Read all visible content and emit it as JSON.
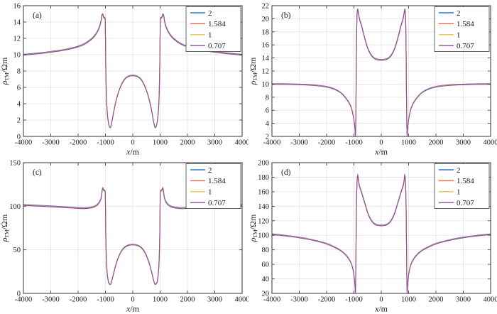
{
  "figure": {
    "background": "#ffffff"
  },
  "style": {
    "axis_color": "#333333",
    "grid_color": "#e3e3e3",
    "text_color": "#1a1a1a",
    "legend_border_color": "#555555",
    "legend_fill": "#ffffff"
  },
  "series": [
    {
      "label": "2",
      "color": "#2E7CC4"
    },
    {
      "label": "1.584",
      "color": "#E06B41"
    },
    {
      "label": "1",
      "color": "#EFC048"
    },
    {
      "label": "0.707",
      "color": "#8E4B9E"
    }
  ],
  "chart_data": [
    {
      "type": "line",
      "panel_label": "(a)",
      "xlabel": {
        "var": "x",
        "unit": "/m"
      },
      "ylabel": {
        "rho": "ρ",
        "sub": "TM",
        "unit": "/Ωm"
      },
      "xlim": [
        -4000,
        4000
      ],
      "ylim": [
        0,
        16
      ],
      "xticks": [
        -4000,
        -3000,
        -2000,
        -1000,
        0,
        1000,
        2000,
        3000,
        4000
      ],
      "yticks": [
        0,
        2,
        4,
        6,
        8,
        10,
        12,
        14,
        16
      ],
      "grid": true,
      "legend_position": "top-right",
      "series_labels": [
        "2",
        "1.584",
        "1",
        "0.707"
      ],
      "series_note": "four frequency curves nearly overlap",
      "base": 10,
      "x": [
        -4000,
        -3500,
        -3000,
        -2500,
        -2000,
        -1750,
        -1500,
        -1400,
        -1300,
        -1250,
        -1200,
        -1160,
        -1130,
        -1100,
        -1070,
        -1040,
        -1015,
        -1005,
        -995,
        -985,
        -970,
        -950,
        -920,
        -880,
        -850,
        -820,
        -790,
        -750,
        -700,
        -600,
        -500,
        -400,
        -300,
        -200,
        -100,
        0,
        100,
        200,
        300,
        400,
        500,
        600,
        700,
        750,
        790,
        820,
        850,
        880,
        920,
        950,
        970,
        985,
        995,
        1005,
        1015,
        1040,
        1070,
        1100,
        1130,
        1160,
        1200,
        1250,
        1300,
        1400,
        1500,
        1750,
        2000,
        2500,
        3000,
        3500,
        4000
      ],
      "y": [
        9.95,
        10.1,
        10.3,
        10.55,
        10.95,
        11.3,
        11.9,
        12.25,
        12.75,
        13.1,
        13.55,
        14.1,
        14.75,
        14.9,
        14.6,
        14.45,
        14.4,
        13.5,
        11.0,
        8.0,
        5.6,
        3.8,
        2.4,
        1.5,
        1.15,
        1.05,
        1.35,
        2.0,
        2.95,
        4.5,
        5.6,
        6.4,
        6.95,
        7.25,
        7.38,
        7.42,
        7.38,
        7.25,
        6.95,
        6.4,
        5.6,
        4.5,
        2.95,
        2.0,
        1.35,
        1.05,
        1.15,
        1.5,
        2.4,
        3.8,
        5.6,
        8.0,
        11.0,
        13.5,
        14.4,
        14.45,
        14.6,
        14.9,
        14.75,
        14.1,
        13.55,
        13.1,
        12.75,
        12.25,
        11.9,
        11.3,
        10.95,
        10.55,
        10.3,
        10.1,
        9.95
      ]
    },
    {
      "type": "line",
      "panel_label": "(b)",
      "xlabel": {
        "var": "x",
        "unit": "/m"
      },
      "ylabel": {
        "rho": "ρ",
        "sub": "TM",
        "unit": "/Ωm"
      },
      "xlim": [
        -4000,
        4000
      ],
      "ylim": [
        2,
        22
      ],
      "xticks": [
        -4000,
        -3000,
        -2000,
        -1000,
        0,
        1000,
        2000,
        3000,
        4000
      ],
      "yticks": [
        2,
        4,
        6,
        8,
        10,
        12,
        14,
        16,
        18,
        20,
        22
      ],
      "grid": true,
      "legend_position": "top-right",
      "series_labels": [
        "2",
        "1.584",
        "1",
        "0.707"
      ],
      "series_note": "four frequency curves nearly overlap",
      "base": 10,
      "x": [
        -4000,
        -3500,
        -3000,
        -2500,
        -2000,
        -1750,
        -1500,
        -1350,
        -1200,
        -1100,
        -1020,
        -980,
        -960,
        -945,
        -935,
        -925,
        -915,
        -905,
        -890,
        -875,
        -860,
        -845,
        -820,
        -795,
        -770,
        -740,
        -700,
        -650,
        -600,
        -500,
        -400,
        -300,
        -200,
        -100,
        0,
        100,
        200,
        300,
        400,
        500,
        600,
        650,
        700,
        740,
        770,
        795,
        820,
        845,
        860,
        875,
        890,
        905,
        915,
        925,
        935,
        945,
        960,
        980,
        1020,
        1100,
        1200,
        1350,
        1500,
        1750,
        2000,
        2500,
        3000,
        3500,
        4000
      ],
      "y": [
        9.97,
        9.95,
        9.9,
        9.8,
        9.55,
        9.25,
        8.7,
        8.1,
        7.25,
        6.4,
        5.0,
        3.9,
        3.0,
        2.0,
        3.5,
        7.0,
        12.0,
        16.5,
        20.0,
        21.2,
        21.35,
        21.05,
        20.4,
        19.9,
        19.5,
        19.15,
        18.55,
        17.7,
        16.9,
        15.5,
        14.6,
        14.05,
        13.78,
        13.68,
        13.65,
        13.68,
        13.78,
        14.05,
        14.6,
        15.5,
        16.9,
        17.7,
        18.55,
        19.15,
        19.5,
        19.9,
        20.4,
        21.05,
        21.35,
        21.2,
        20.0,
        16.5,
        12.0,
        7.0,
        3.5,
        2.0,
        3.0,
        3.9,
        5.0,
        6.4,
        7.25,
        8.1,
        8.7,
        9.25,
        9.55,
        9.8,
        9.9,
        9.95,
        9.97
      ]
    },
    {
      "type": "line",
      "panel_label": "(c)",
      "xlabel": {
        "var": "x",
        "unit": "/m"
      },
      "ylabel": {
        "rho": "ρ",
        "sub": "TM",
        "unit": "/Ωm"
      },
      "xlim": [
        -4000,
        4000
      ],
      "ylim": [
        0,
        150
      ],
      "xticks": [
        -4000,
        -3000,
        -2000,
        -1000,
        0,
        1000,
        2000,
        3000,
        4000
      ],
      "yticks": [
        0,
        50,
        100,
        150
      ],
      "grid": true,
      "legend_position": "top-right",
      "series_labels": [
        "2",
        "1.584",
        "1",
        "0.707"
      ],
      "series_note": "four frequency curves nearly overlap",
      "base": 100,
      "x": [
        -4000,
        -3500,
        -3000,
        -2500,
        -2000,
        -1750,
        -1500,
        -1400,
        -1300,
        -1250,
        -1200,
        -1160,
        -1130,
        -1100,
        -1070,
        -1040,
        -1015,
        -1005,
        -995,
        -985,
        -970,
        -950,
        -920,
        -880,
        -850,
        -820,
        -790,
        -750,
        -700,
        -600,
        -500,
        -400,
        -300,
        -200,
        -100,
        0,
        100,
        200,
        300,
        400,
        500,
        600,
        700,
        750,
        790,
        820,
        850,
        880,
        920,
        950,
        970,
        985,
        995,
        1005,
        1015,
        1040,
        1070,
        1100,
        1130,
        1160,
        1200,
        1250,
        1300,
        1400,
        1500,
        1750,
        2000,
        2500,
        3000,
        3500,
        4000
      ],
      "y": [
        101,
        100.2,
        99.4,
        98.4,
        97.5,
        97.3,
        98.3,
        99.3,
        101.2,
        103,
        105.5,
        109,
        115,
        120.5,
        118.5,
        117.5,
        117,
        110,
        90,
        62,
        43,
        29,
        18.5,
        12,
        10.6,
        10.1,
        12,
        16.5,
        23,
        34.5,
        43,
        49,
        52.5,
        54.5,
        55.4,
        55.7,
        55.4,
        54.5,
        52.5,
        49,
        43,
        34.5,
        23,
        16.5,
        12,
        10.1,
        10.6,
        12,
        18.5,
        29,
        43,
        62,
        90,
        110,
        117,
        117.5,
        118.5,
        120.5,
        115,
        109,
        105.5,
        103,
        101.2,
        99.3,
        98.3,
        97.3,
        97.5,
        98.4,
        99.4,
        100.2,
        101
      ]
    },
    {
      "type": "line",
      "panel_label": "(d)",
      "xlabel": {
        "var": "x",
        "unit": "/m"
      },
      "ylabel": {
        "rho": "ρ",
        "sub": "TM",
        "unit": "/Ωm"
      },
      "xlim": [
        -4000,
        4000
      ],
      "ylim": [
        20,
        200
      ],
      "xticks": [
        -4000,
        -3000,
        -2000,
        -1000,
        0,
        1000,
        2000,
        3000,
        4000
      ],
      "yticks": [
        20,
        40,
        60,
        80,
        100,
        120,
        140,
        160,
        180,
        200
      ],
      "grid": true,
      "legend_position": "top-right",
      "series_labels": [
        "2",
        "1.584",
        "1",
        "0.707"
      ],
      "series_note": "four frequency curves nearly overlap",
      "base": 100,
      "x": [
        -4000,
        -3500,
        -3000,
        -2500,
        -2000,
        -1750,
        -1500,
        -1350,
        -1200,
        -1100,
        -1020,
        -980,
        -960,
        -945,
        -935,
        -925,
        -915,
        -905,
        -890,
        -875,
        -860,
        -845,
        -820,
        -795,
        -770,
        -740,
        -700,
        -650,
        -600,
        -500,
        -400,
        -300,
        -200,
        -100,
        0,
        100,
        200,
        300,
        400,
        500,
        600,
        650,
        700,
        740,
        770,
        795,
        820,
        845,
        860,
        875,
        890,
        905,
        915,
        925,
        935,
        945,
        960,
        980,
        1020,
        1100,
        1200,
        1350,
        1500,
        1750,
        2000,
        2500,
        3000,
        3500,
        4000
      ],
      "y": [
        101,
        99,
        96.5,
        93,
        88,
        84,
        79,
        74.5,
        68,
        61,
        50,
        38,
        29,
        20,
        42,
        78,
        118,
        148,
        168,
        179,
        182.5,
        178.5,
        171,
        167,
        164,
        161,
        156,
        149.5,
        143.5,
        131,
        122.5,
        117,
        114.3,
        113.3,
        113,
        113.3,
        114.3,
        117,
        122.5,
        131,
        143.5,
        149.5,
        156,
        161,
        164,
        167,
        171,
        178.5,
        182.5,
        179,
        168,
        148,
        118,
        78,
        42,
        20,
        29,
        38,
        50,
        61,
        68,
        74.5,
        79,
        84,
        88,
        93,
        96.5,
        99,
        101
      ]
    }
  ]
}
